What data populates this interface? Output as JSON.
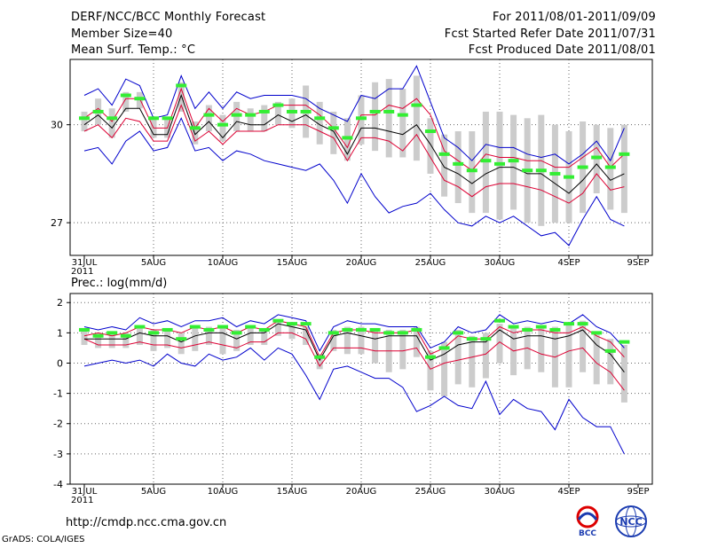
{
  "header": {
    "title": "DERF/NCC/BCC Monthly Forecast",
    "member_size": "Member Size=40",
    "variable1": "Mean Surf. Temp.: °C",
    "forecast_period": "For 2011/08/01-2011/09/09",
    "fcst_started": "Fcst Started Refer Date 2011/07/31",
    "fcst_produced": "Fcst Produced Date 2011/08/01"
  },
  "footer": {
    "url": "http://cmdp.ncc.cma.gov.cn",
    "grads": "GrADS: COLA/IGES",
    "logo_bcc": "BCC",
    "logo_ncc": "NCC"
  },
  "colors": {
    "max_min": "#0000cc",
    "mean": "#000000",
    "spread": "#dd0033",
    "box": "#cccccc",
    "obs": "#33ee33",
    "grid": "#666666"
  },
  "chart_data": [
    {
      "type": "line",
      "title": "Mean Surf. Temp.: °C",
      "ylim": [
        26,
        32
      ],
      "yticks": [
        27,
        30
      ],
      "ytick_labels": [
        "27",
        "30"
      ],
      "xticks": [
        0,
        5,
        10,
        15,
        20,
        25,
        30,
        35,
        40
      ],
      "xtick_labels": [
        "31JUL\n2011",
        "5AUG",
        "10AUG",
        "15AUG",
        "20AUG",
        "25AUG",
        "30AUG",
        "4SEP",
        "9SEP"
      ],
      "series": [
        {
          "name": "max",
          "values": [
            30.9,
            31.1,
            30.6,
            31.4,
            31.2,
            30.2,
            30.3,
            31.5,
            30.5,
            31,
            30.5,
            31,
            30.8,
            30.9,
            30.9,
            30.9,
            30.8,
            30.5,
            30.3,
            30.1,
            30.9,
            30.8,
            31.1,
            31.1,
            31.8,
            30.7,
            29.6,
            29.3,
            28.9,
            29.4,
            29.3,
            29.3,
            29.1,
            29,
            29.1,
            28.8,
            29.1,
            29.5,
            28.9,
            29.9
          ]
        },
        {
          "name": "max_spread",
          "values": [
            30.2,
            30.5,
            30.1,
            30.8,
            30.8,
            29.9,
            29.9,
            31.1,
            29.9,
            30.5,
            30.1,
            30.5,
            30.3,
            30.4,
            30.6,
            30.6,
            30.6,
            30.3,
            29.9,
            29.3,
            30.3,
            30.3,
            30.6,
            30.5,
            30.8,
            30.3,
            29.2,
            28.9,
            28.6,
            29.1,
            29,
            29,
            28.9,
            28.9,
            28.7,
            28.7,
            29,
            29.3,
            28.7,
            29.1
          ]
        },
        {
          "name": "mean",
          "values": [
            30,
            30.3,
            29.9,
            30.5,
            30.5,
            29.7,
            29.7,
            30.9,
            29.7,
            30.1,
            29.6,
            30.1,
            30,
            30,
            30.3,
            30.1,
            30.3,
            30,
            29.8,
            29.1,
            29.9,
            29.9,
            29.8,
            29.7,
            30,
            29.4,
            28.7,
            28.5,
            28.2,
            28.5,
            28.7,
            28.7,
            28.5,
            28.5,
            28.2,
            27.9,
            28.3,
            28.8,
            28.3,
            28.5
          ]
        },
        {
          "name": "min_spread",
          "values": [
            29.8,
            30,
            29.6,
            30.2,
            30.1,
            29.5,
            29.5,
            30.6,
            29.5,
            29.8,
            29.4,
            29.8,
            29.8,
            29.8,
            30,
            30,
            30,
            29.8,
            29.6,
            28.9,
            29.6,
            29.6,
            29.5,
            29.2,
            29.7,
            29,
            28.3,
            28.1,
            27.8,
            28.1,
            28.2,
            28.2,
            28.1,
            28,
            27.8,
            27.6,
            27.9,
            28.5,
            28,
            28.1
          ]
        },
        {
          "name": "min",
          "values": [
            29.2,
            29.3,
            28.8,
            29.5,
            29.8,
            29.2,
            29.3,
            30.2,
            29.2,
            29.3,
            28.9,
            29.2,
            29.1,
            28.9,
            28.8,
            28.7,
            28.6,
            28.8,
            28.3,
            27.6,
            28.5,
            27.8,
            27.3,
            27.5,
            27.6,
            27.9,
            27.4,
            27,
            26.9,
            27.2,
            27,
            27.2,
            26.9,
            26.6,
            26.7,
            26.3,
            27.1,
            27.8,
            27.1,
            26.9
          ]
        },
        {
          "name": "obs",
          "values": [
            30.2,
            30.4,
            30.2,
            30.9,
            30.8,
            30.2,
            30.2,
            31.2,
            29.9,
            30.3,
            30,
            30.3,
            30.3,
            30.4,
            30.6,
            30.4,
            30.4,
            30.2,
            29.9,
            29.6,
            30.2,
            30.4,
            30.4,
            30.3,
            30.6,
            29.8,
            29.1,
            28.8,
            28.6,
            28.9,
            28.8,
            28.9,
            28.6,
            28.6,
            28.5,
            28.4,
            28.7,
            29,
            28.7,
            29.1
          ]
        },
        {
          "name": "box_high",
          "values": [
            30.4,
            30.8,
            30.5,
            31,
            31,
            30.2,
            30.2,
            31.3,
            30.1,
            30.6,
            30.3,
            30.7,
            30.5,
            30.6,
            30.7,
            30.8,
            31.2,
            30.7,
            30.4,
            30.2,
            30.9,
            31.3,
            31.4,
            31.1,
            31.5,
            30.2,
            29.7,
            29.8,
            29.8,
            30.4,
            30.4,
            30.3,
            30.2,
            30.3,
            30,
            29.8,
            30.1,
            30,
            29.9,
            30
          ]
        },
        {
          "name": "box_low",
          "values": [
            29.8,
            30,
            29.6,
            30.4,
            30.5,
            29.6,
            29.6,
            30.4,
            29.4,
            29.8,
            29.5,
            29.8,
            29.8,
            29.8,
            30,
            29.9,
            29.6,
            29.4,
            29.1,
            28.9,
            29.4,
            29.2,
            29,
            29,
            28.9,
            28.5,
            27.8,
            27.6,
            27.3,
            27.3,
            27.1,
            27.4,
            27,
            26.9,
            27,
            27,
            27.3,
            27.9,
            27.4,
            27.3
          ]
        }
      ]
    },
    {
      "type": "line",
      "title": "Prec.: log(mm/d)",
      "ylim": [
        -4,
        2.3
      ],
      "yticks": [
        -4,
        -3,
        -2,
        -1,
        0,
        1,
        2
      ],
      "ytick_labels": [
        "-4",
        "-3",
        "-2",
        "-1",
        "0",
        "1",
        "2"
      ],
      "xticks": [
        0,
        5,
        10,
        15,
        20,
        25,
        30,
        35,
        40
      ],
      "xtick_labels": [
        "31JUL\n2011",
        "5AUG",
        "10AUG",
        "15AUG",
        "20AUG",
        "25AUG",
        "30AUG",
        "4SEP",
        "9SEP"
      ],
      "series": [
        {
          "name": "max",
          "values": [
            1.2,
            1.1,
            1.2,
            1.1,
            1.5,
            1.3,
            1.4,
            1.2,
            1.4,
            1.4,
            1.5,
            1.2,
            1.4,
            1.3,
            1.6,
            1.5,
            1.4,
            0.4,
            1.2,
            1.4,
            1.3,
            1.3,
            1.2,
            1.2,
            1.2,
            0.5,
            0.7,
            1.2,
            1,
            1.1,
            1.6,
            1.3,
            1.4,
            1.3,
            1.4,
            1.3,
            1.6,
            1.2,
            1,
            0.5
          ]
        },
        {
          "name": "max_spread",
          "values": [
            0.9,
            1,
            0.9,
            1,
            1.2,
            1.1,
            1.1,
            1,
            1.2,
            1.1,
            1.2,
            1,
            1.2,
            1.1,
            1.4,
            1.3,
            1.2,
            0.2,
            1,
            1.1,
            1.1,
            1,
            1,
            1,
            1.1,
            0.3,
            0.5,
            0.9,
            0.8,
            0.8,
            1.2,
            1,
            1.1,
            1.1,
            1,
            1,
            1.2,
            0.9,
            0.7,
            0.2
          ]
        },
        {
          "name": "mean",
          "values": [
            0.8,
            0.8,
            0.8,
            0.8,
            1,
            0.9,
            0.9,
            0.7,
            0.9,
            1,
            1,
            0.8,
            1,
            1,
            1.3,
            1.2,
            1.1,
            0.1,
            0.9,
            1,
            0.9,
            0.8,
            0.9,
            0.9,
            0.9,
            0.1,
            0.3,
            0.6,
            0.7,
            0.7,
            1.1,
            0.8,
            0.9,
            0.9,
            0.8,
            0.9,
            1.1,
            0.6,
            0.3,
            -0.3
          ]
        },
        {
          "name": "min_spread",
          "values": [
            0.8,
            0.6,
            0.6,
            0.6,
            0.7,
            0.6,
            0.6,
            0.5,
            0.6,
            0.7,
            0.6,
            0.5,
            0.7,
            0.7,
            1,
            1,
            0.8,
            -0.1,
            0.5,
            0.5,
            0.5,
            0.4,
            0.4,
            0.4,
            0.5,
            -0.2,
            0,
            0.1,
            0.2,
            0.3,
            0.7,
            0.4,
            0.5,
            0.3,
            0.2,
            0.4,
            0.5,
            0,
            -0.3,
            -0.9
          ]
        },
        {
          "name": "min",
          "values": [
            -0.1,
            0,
            0.1,
            0,
            0.1,
            -0.1,
            0.3,
            0,
            -0.1,
            0.3,
            0.1,
            0.2,
            0.5,
            0.1,
            0.5,
            0.3,
            -0.4,
            -1.2,
            -0.2,
            -0.1,
            -0.3,
            -0.5,
            -0.5,
            -0.8,
            -1.6,
            -1.4,
            -1.1,
            -1.4,
            -1.5,
            -0.6,
            -1.7,
            -1.2,
            -1.5,
            -1.6,
            -2.2,
            -1.2,
            -1.8,
            -2.1,
            -2.1,
            -3
          ]
        },
        {
          "name": "obs",
          "values": [
            1.1,
            0.9,
            1,
            0.9,
            1.2,
            1,
            1.1,
            0.8,
            1.2,
            1.1,
            1.2,
            1,
            1.2,
            1.1,
            1.4,
            1.3,
            1.3,
            0.2,
            1,
            1.1,
            1.1,
            1.1,
            1,
            1,
            1.1,
            0.2,
            0.5,
            1,
            0.8,
            0.8,
            1.4,
            1.2,
            1.1,
            1.2,
            1.1,
            1.3,
            1.3,
            1,
            0.4,
            0.7
          ]
        },
        {
          "name": "box_high",
          "values": [
            1.1,
            1,
            1,
            1,
            1.2,
            1.1,
            1.1,
            1,
            1.2,
            1.2,
            1.2,
            1.1,
            1.2,
            1.1,
            1.4,
            1.3,
            1.2,
            0.3,
            1.1,
            1.2,
            1.2,
            1.1,
            1.1,
            1.1,
            1.2,
            0.4,
            0.7,
            1.1,
            0.9,
            1,
            1.3,
            1.2,
            1.2,
            1.2,
            1.2,
            1.3,
            1.4,
            1,
            0.8,
            0.6
          ]
        },
        {
          "name": "box_low",
          "values": [
            0.6,
            0.5,
            0.5,
            0.5,
            0.6,
            0.4,
            0.5,
            0.3,
            0.4,
            0.6,
            0.3,
            0.4,
            0.6,
            0.6,
            0.9,
            0.8,
            0.6,
            -0.2,
            0.4,
            0.3,
            0.3,
            0,
            -0.3,
            -0.2,
            0.2,
            -0.9,
            -1.1,
            -0.7,
            -0.8,
            -0.5,
            0,
            -0.4,
            -0.2,
            -0.3,
            -0.8,
            -0.8,
            -0.3,
            -0.7,
            -0.7,
            -1.3
          ]
        }
      ]
    }
  ]
}
